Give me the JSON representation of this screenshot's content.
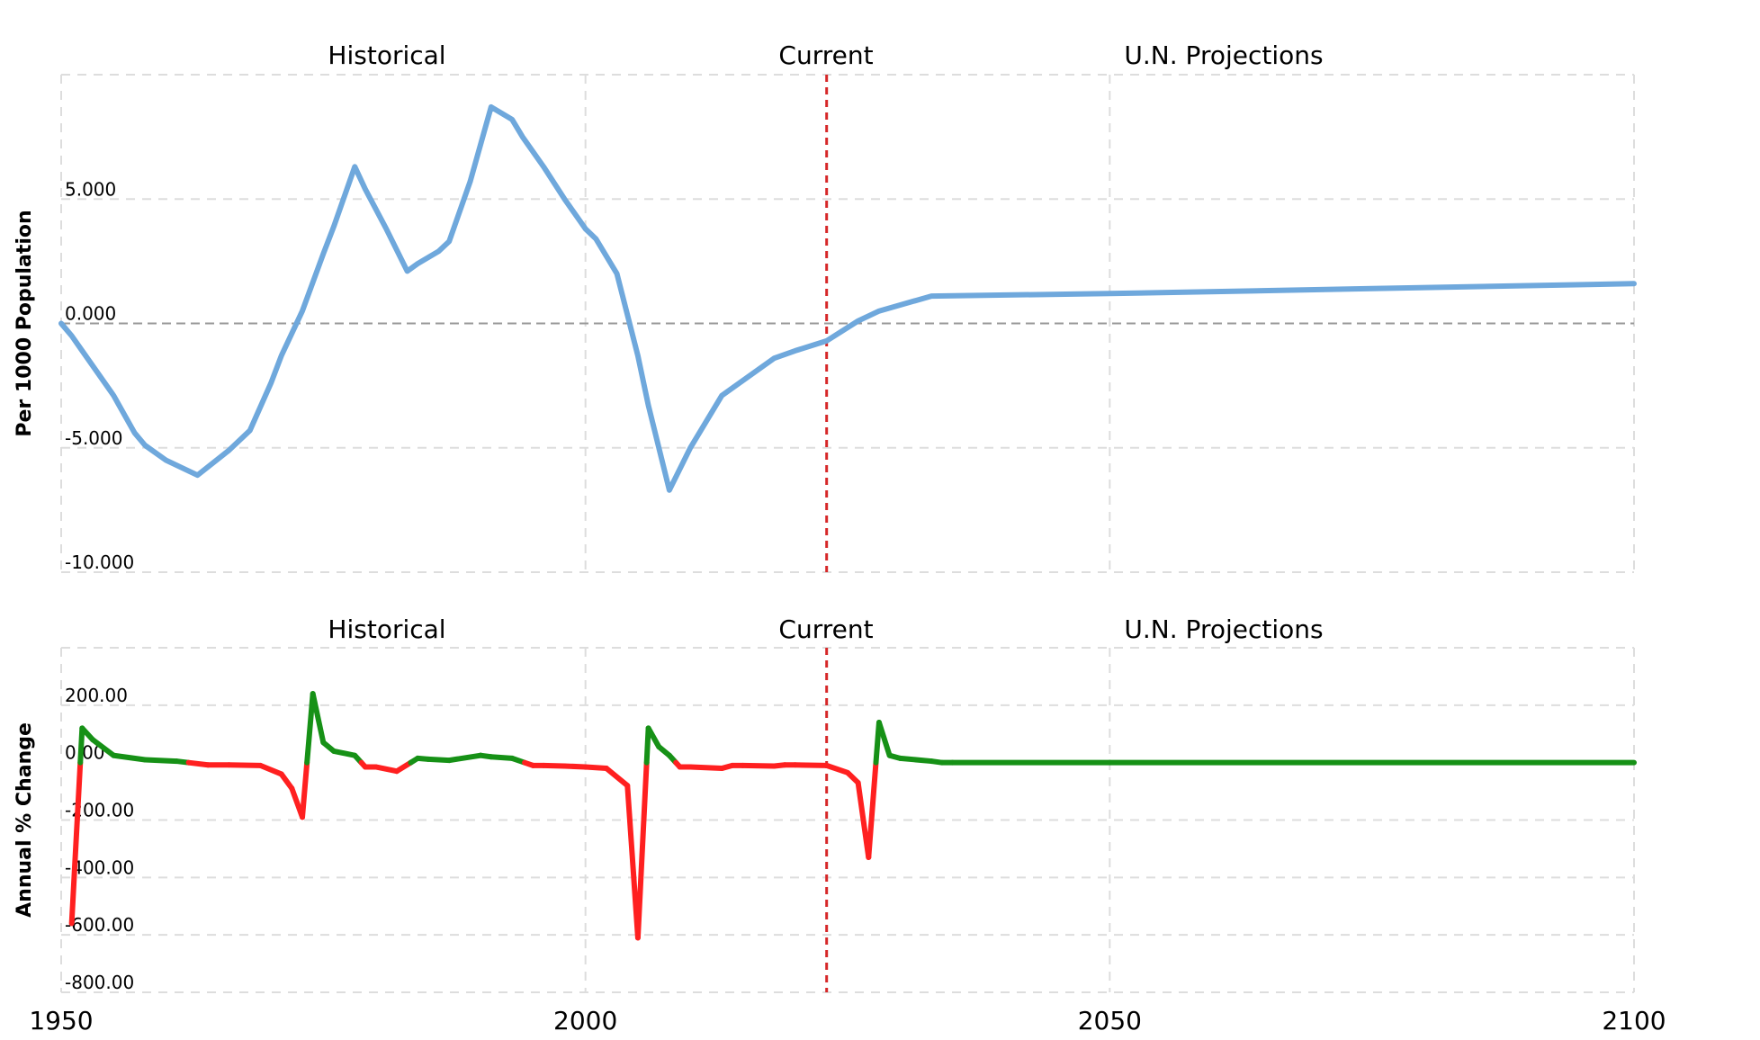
{
  "colors": {
    "migration_line": "#6fa8dc",
    "positive": "#169116",
    "negative": "#ff2020",
    "current_marker": "#d62728"
  },
  "x_axis": {
    "ticks": [
      "1950",
      "2000",
      "2050",
      "2100"
    ],
    "tick_values": [
      1950,
      2000,
      2050,
      2100
    ],
    "range": [
      1950,
      2100
    ]
  },
  "current_year": 2023,
  "chart_data": [
    {
      "type": "line",
      "ylabel": "Per 1000 Population",
      "ylim": [
        -10,
        10
      ],
      "yticks": [
        -10,
        -5,
        0,
        5
      ],
      "ytick_labels": [
        "-10.000",
        "-5.000",
        "0.000",
        "5.000"
      ],
      "periods": [
        "Historical",
        "Current",
        "U.N. Projections"
      ],
      "grid": true,
      "series": [
        {
          "x": [
            1950,
            1951,
            1952,
            1955,
            1957,
            1958,
            1960,
            1963,
            1966,
            1968,
            1970,
            1971,
            1973,
            1975,
            1976,
            1978,
            1979,
            1981,
            1983,
            1984,
            1986,
            1987,
            1989,
            1991,
            1993,
            1994,
            1996,
            1998,
            2000,
            2001,
            2003,
            2005,
            2006,
            2008,
            2010,
            2013,
            2015,
            2018,
            2020,
            2023,
            2026,
            2028,
            2033,
            2050,
            2075,
            2100
          ],
          "y": [
            0.0,
            -0.5,
            -1.1,
            -2.9,
            -4.4,
            -4.9,
            -5.5,
            -6.1,
            -5.1,
            -4.3,
            -2.4,
            -1.3,
            0.5,
            2.8,
            3.9,
            6.3,
            5.4,
            3.8,
            2.1,
            2.4,
            2.9,
            3.3,
            5.7,
            8.7,
            8.2,
            7.5,
            6.3,
            5.0,
            3.8,
            3.4,
            2.0,
            -1.3,
            -3.3,
            -6.7,
            -5.0,
            -2.9,
            -2.3,
            -1.4,
            -1.1,
            -0.7,
            0.1,
            0.5,
            1.1,
            1.2,
            1.4,
            1.6
          ]
        }
      ]
    },
    {
      "type": "line",
      "ylabel": "Annual % Change",
      "ylim": [
        -800,
        400
      ],
      "yticks": [
        -800,
        -600,
        -400,
        -200,
        0,
        200
      ],
      "ytick_labels": [
        "-800.00",
        "-600.00",
        "-400.00",
        "-200.00",
        "0.00",
        "200.00"
      ],
      "periods": [
        "Historical",
        "Current",
        "U.N. Projections"
      ],
      "grid": true,
      "series": [
        {
          "x": [
            1951,
            1952,
            1953,
            1955,
            1958,
            1961,
            1964,
            1966,
            1969,
            1971,
            1972,
            1973,
            1974,
            1975,
            1976,
            1978,
            1979,
            1980,
            1982,
            1984,
            1985,
            1987,
            1990,
            1991,
            1993,
            1995,
            1996,
            1998,
            2000,
            2002,
            2004,
            2005,
            2006,
            2007,
            2008,
            2009,
            2010,
            2013,
            2014,
            2015,
            2018,
            2019,
            2020,
            2023,
            2025,
            2026,
            2027,
            2028,
            2029,
            2030,
            2033,
            2034,
            2035,
            2050,
            2100
          ],
          "y": [
            -560,
            120,
            80,
            25,
            10,
            5,
            -8,
            -8,
            -10,
            -40,
            -90,
            -190,
            240,
            70,
            40,
            25,
            -15,
            -15,
            -30,
            15,
            12,
            8,
            25,
            20,
            15,
            -10,
            -10,
            -12,
            -15,
            -20,
            -80,
            -610,
            120,
            55,
            25,
            -15,
            -15,
            -20,
            -10,
            -10,
            -12,
            -8,
            -8,
            -10,
            -35,
            -70,
            -330,
            140,
            25,
            15,
            5,
            0,
            0,
            0,
            0
          ]
        }
      ]
    }
  ]
}
